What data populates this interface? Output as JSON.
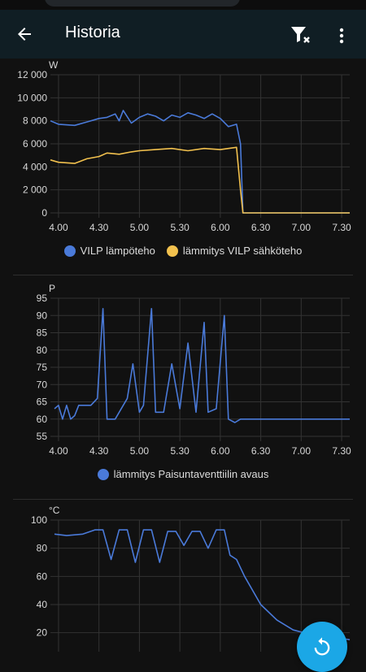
{
  "app": {
    "title": "Historia"
  },
  "icons": {
    "back": "arrow-left-icon",
    "filter": "filter-remove-icon",
    "more": "dots-vertical-icon",
    "refresh": "refresh-icon"
  },
  "colors": {
    "blue": "#4a7ad9",
    "yellow": "#f2c14e",
    "grid": "#333333",
    "accent": "#1ba7e6"
  },
  "x_ticks": [
    "4.00",
    "4.30",
    "5.00",
    "5.30",
    "6.00",
    "6.30",
    "7.00",
    "7.30"
  ],
  "legend1": [
    "VILP lämpöteho",
    "lämmitys VILP sähköteho"
  ],
  "legend2": [
    "lämmitys Paisuntaventtiilin avaus"
  ],
  "chart_data": [
    {
      "type": "line",
      "unit": "W",
      "ylim": [
        0,
        12000
      ],
      "y_ticks": [
        "12 000",
        "10 000",
        "8 000",
        "6 000",
        "4 000",
        "2 000",
        "0"
      ],
      "x": [
        "4.00",
        "4.30",
        "5.00",
        "5.30",
        "6.00",
        "6.30",
        "7.00",
        "7.30"
      ],
      "series": [
        {
          "name": "VILP lämpöteho",
          "color": "#4a7ad9",
          "points": [
            [
              3.9,
              8000
            ],
            [
              4.0,
              7700
            ],
            [
              4.2,
              7600
            ],
            [
              4.35,
              7900
            ],
            [
              4.5,
              8200
            ],
            [
              4.6,
              8300
            ],
            [
              4.7,
              8600
            ],
            [
              4.75,
              8000
            ],
            [
              4.8,
              8900
            ],
            [
              4.9,
              7800
            ],
            [
              5.0,
              8300
            ],
            [
              5.1,
              8600
            ],
            [
              5.2,
              8400
            ],
            [
              5.3,
              8000
            ],
            [
              5.4,
              8500
            ],
            [
              5.5,
              8300
            ],
            [
              5.6,
              8700
            ],
            [
              5.7,
              8500
            ],
            [
              5.8,
              8200
            ],
            [
              5.9,
              8600
            ],
            [
              6.0,
              8200
            ],
            [
              6.1,
              7500
            ],
            [
              6.2,
              7700
            ],
            [
              6.25,
              6000
            ],
            [
              6.28,
              0
            ],
            [
              7.6,
              0
            ]
          ]
        },
        {
          "name": "lämmitys VILP sähköteho",
          "color": "#f2c14e",
          "points": [
            [
              3.9,
              4600
            ],
            [
              4.0,
              4400
            ],
            [
              4.2,
              4300
            ],
            [
              4.35,
              4700
            ],
            [
              4.5,
              4900
            ],
            [
              4.6,
              5200
            ],
            [
              4.75,
              5100
            ],
            [
              4.9,
              5300
            ],
            [
              5.0,
              5400
            ],
            [
              5.2,
              5500
            ],
            [
              5.4,
              5600
            ],
            [
              5.6,
              5400
            ],
            [
              5.8,
              5600
            ],
            [
              6.0,
              5500
            ],
            [
              6.2,
              5700
            ],
            [
              6.25,
              2000
            ],
            [
              6.28,
              0
            ],
            [
              7.6,
              0
            ]
          ]
        }
      ]
    },
    {
      "type": "line",
      "unit": "P",
      "ylim": [
        55,
        95
      ],
      "y_ticks": [
        "95",
        "90",
        "85",
        "80",
        "75",
        "70",
        "65",
        "60",
        "55"
      ],
      "x": [
        "4.00",
        "4.30",
        "5.00",
        "5.30",
        "6.00",
        "6.30",
        "7.00",
        "7.30"
      ],
      "series": [
        {
          "name": "lämmitys Paisuntaventtiilin avaus",
          "color": "#4a7ad9",
          "points": [
            [
              3.95,
              63
            ],
            [
              4.0,
              64
            ],
            [
              4.05,
              60
            ],
            [
              4.1,
              64
            ],
            [
              4.15,
              60
            ],
            [
              4.2,
              61
            ],
            [
              4.25,
              64
            ],
            [
              4.3,
              64
            ],
            [
              4.4,
              64
            ],
            [
              4.48,
              66
            ],
            [
              4.55,
              92
            ],
            [
              4.6,
              60
            ],
            [
              4.7,
              60
            ],
            [
              4.85,
              66
            ],
            [
              4.92,
              76
            ],
            [
              5.0,
              62
            ],
            [
              5.05,
              64
            ],
            [
              5.15,
              92
            ],
            [
              5.2,
              62
            ],
            [
              5.3,
              62
            ],
            [
              5.4,
              76
            ],
            [
              5.5,
              63
            ],
            [
              5.6,
              82
            ],
            [
              5.7,
              62
            ],
            [
              5.8,
              88
            ],
            [
              5.85,
              62
            ],
            [
              5.95,
              63
            ],
            [
              6.05,
              90
            ],
            [
              6.1,
              60
            ],
            [
              6.18,
              59
            ],
            [
              6.25,
              60
            ],
            [
              7.6,
              60
            ]
          ]
        }
      ]
    },
    {
      "type": "line",
      "unit": "°C",
      "ylim": [
        10,
        100
      ],
      "y_ticks": [
        "100",
        "80",
        "60",
        "40",
        "20"
      ],
      "x": [
        "4.00",
        "4.30",
        "5.00",
        "5.30",
        "6.00",
        "6.30",
        "7.00",
        "7.30"
      ],
      "series": [
        {
          "name": "",
          "color": "#4a7ad9",
          "points": [
            [
              3.95,
              90
            ],
            [
              4.1,
              89
            ],
            [
              4.3,
              90
            ],
            [
              4.45,
              93
            ],
            [
              4.55,
              93
            ],
            [
              4.65,
              72
            ],
            [
              4.75,
              93
            ],
            [
              4.85,
              93
            ],
            [
              4.95,
              70
            ],
            [
              5.05,
              93
            ],
            [
              5.15,
              93
            ],
            [
              5.25,
              70
            ],
            [
              5.35,
              92
            ],
            [
              5.45,
              92
            ],
            [
              5.55,
              82
            ],
            [
              5.65,
              92
            ],
            [
              5.75,
              92
            ],
            [
              5.85,
              80
            ],
            [
              5.95,
              93
            ],
            [
              6.05,
              93
            ],
            [
              6.12,
              75
            ],
            [
              6.2,
              72
            ],
            [
              6.3,
              60
            ],
            [
              6.5,
              40
            ],
            [
              6.7,
              29
            ],
            [
              6.9,
              22
            ],
            [
              7.1,
              19
            ],
            [
              7.3,
              17
            ],
            [
              7.5,
              16
            ],
            [
              7.6,
              15
            ]
          ]
        }
      ]
    }
  ]
}
